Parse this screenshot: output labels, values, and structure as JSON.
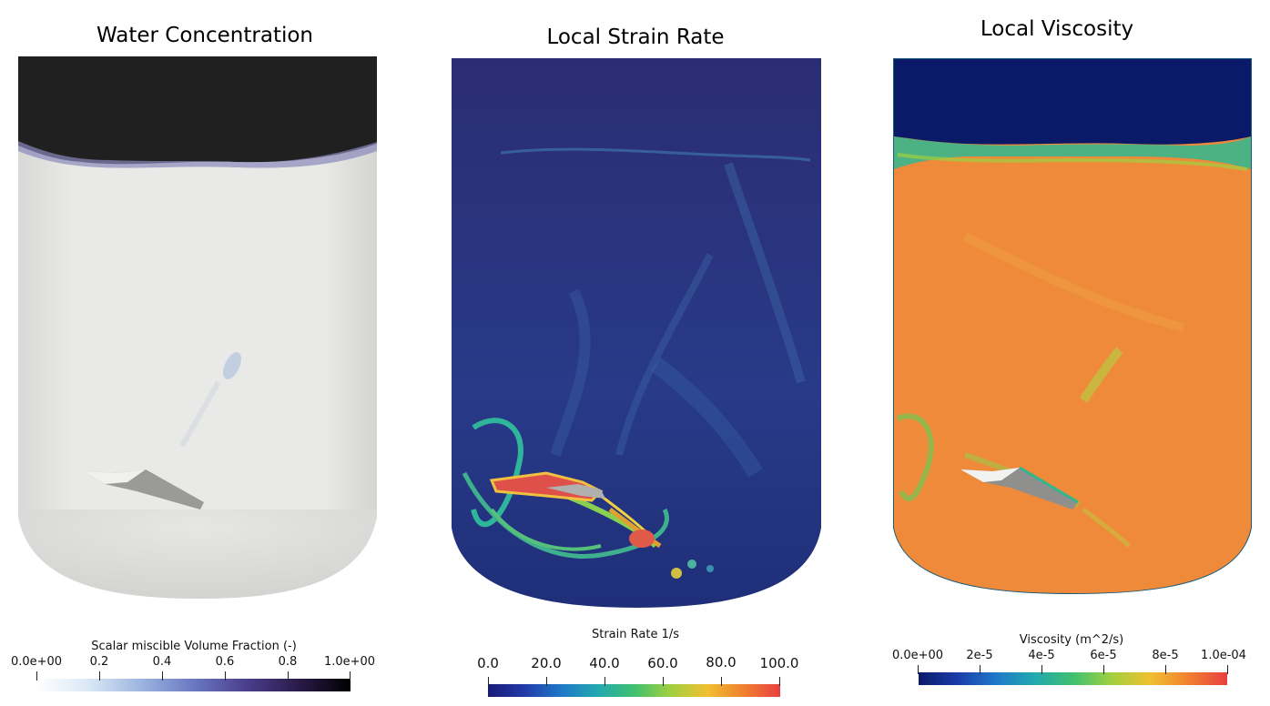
{
  "panels": [
    {
      "title": "Water Concentration",
      "colorbar": {
        "title": "Scalar miscible Volume Fraction (-)",
        "ticks": [
          "0.0e+00",
          "0.2",
          "0.4",
          "0.6",
          "0.8",
          "1.0e+00"
        ]
      }
    },
    {
      "title": "Local Strain Rate",
      "colorbar": {
        "title": "Strain Rate 1/s",
        "ticks": [
          "0.0",
          "20.0",
          "40.0",
          "60.0",
          "80.0",
          "100.0"
        ]
      }
    },
    {
      "title": "Local Viscosity",
      "colorbar": {
        "title": "Viscosity (m^2/s)",
        "ticks": [
          "0.0e+00",
          "2e-5",
          "4e-5",
          "6e-5",
          "8e-5",
          "1.0e-04"
        ]
      }
    }
  ],
  "colors": {
    "water_top": "#202020",
    "water_bulk": "#e7e7e5",
    "strain_bg": "#2b3580",
    "strain_hot": "#e0504a",
    "visc_top": "#0b1a68",
    "visc_bulk": "#ee8a3a"
  }
}
